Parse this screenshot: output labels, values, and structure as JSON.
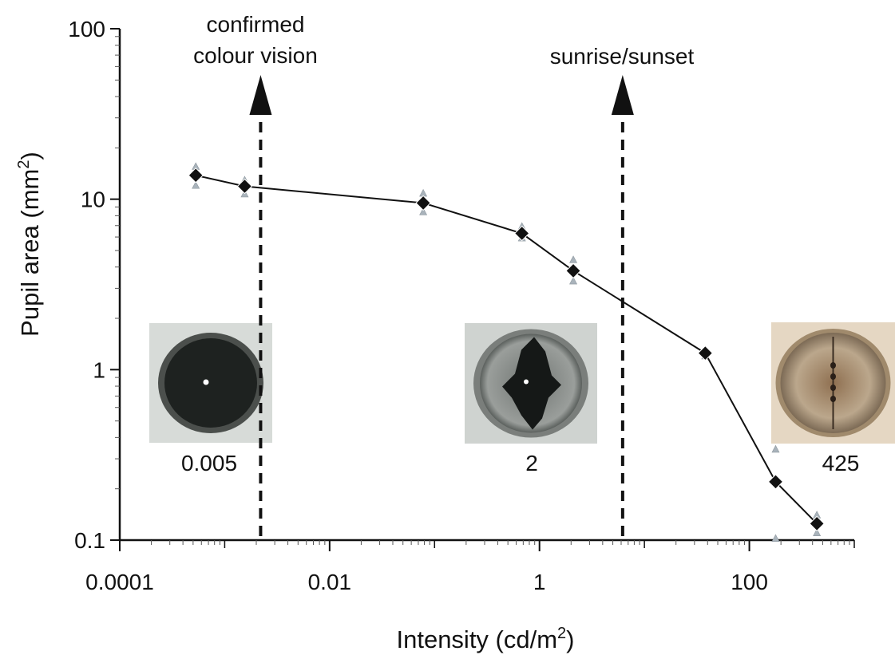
{
  "chart_data": {
    "type": "line",
    "xscale": "log",
    "yscale": "log",
    "xlim": [
      0.0001,
      1000
    ],
    "ylim": [
      0.1,
      100
    ],
    "xticks": [
      "0.0001",
      "0.01",
      "1",
      "100"
    ],
    "yticks": [
      "0.1",
      "1",
      "10",
      "100"
    ],
    "xlabel": {
      "prefix": "Intensity (cd/m",
      "sup": "2",
      "suffix": ")"
    },
    "ylabel": {
      "prefix": "Pupil area (mm",
      "sup": "2",
      "suffix": ")"
    },
    "series": [
      {
        "marker": "diamond",
        "color": "#111111",
        "points": [
          {
            "x": 0.00053,
            "y": 13.8
          },
          {
            "x": 0.00155,
            "y": 11.9
          },
          {
            "x": 0.078,
            "y": 9.5
          },
          {
            "x": 0.68,
            "y": 6.3
          },
          {
            "x": 2.1,
            "y": 3.8
          },
          {
            "x": 38,
            "y": 1.25
          },
          {
            "x": 178,
            "y": 0.22
          },
          {
            "x": 440,
            "y": 0.125
          }
        ]
      },
      {
        "marker": "triangle",
        "color": "#a9b3bb",
        "points": [
          {
            "x": 0.00053,
            "y": 15.5
          },
          {
            "x": 0.00053,
            "y": 12.0
          },
          {
            "x": 0.00155,
            "y": 12.9
          },
          {
            "x": 0.00155,
            "y": 10.7
          },
          {
            "x": 0.078,
            "y": 10.8
          },
          {
            "x": 0.078,
            "y": 8.4
          },
          {
            "x": 0.68,
            "y": 6.9
          },
          {
            "x": 0.68,
            "y": 5.9
          },
          {
            "x": 2.1,
            "y": 4.4
          },
          {
            "x": 2.1,
            "y": 3.3
          },
          {
            "x": 38,
            "y": 1.3
          },
          {
            "x": 38,
            "y": 1.2
          },
          {
            "x": 178,
            "y": 0.34
          },
          {
            "x": 178,
            "y": 0.102
          },
          {
            "x": 440,
            "y": 0.14
          },
          {
            "x": 440,
            "y": 0.11
          }
        ]
      }
    ],
    "annotations": [
      {
        "lines": [
          "confirmed",
          "colour vision"
        ],
        "x": 0.0022
      },
      {
        "lines": [
          "sunrise/sunset"
        ],
        "x": 6.2
      }
    ],
    "insets": [
      {
        "label": "0.005",
        "pupil": "round-dilated"
      },
      {
        "label": "2",
        "pupil": "slit-partial"
      },
      {
        "label": "425",
        "pupil": "slit-closed"
      }
    ]
  }
}
